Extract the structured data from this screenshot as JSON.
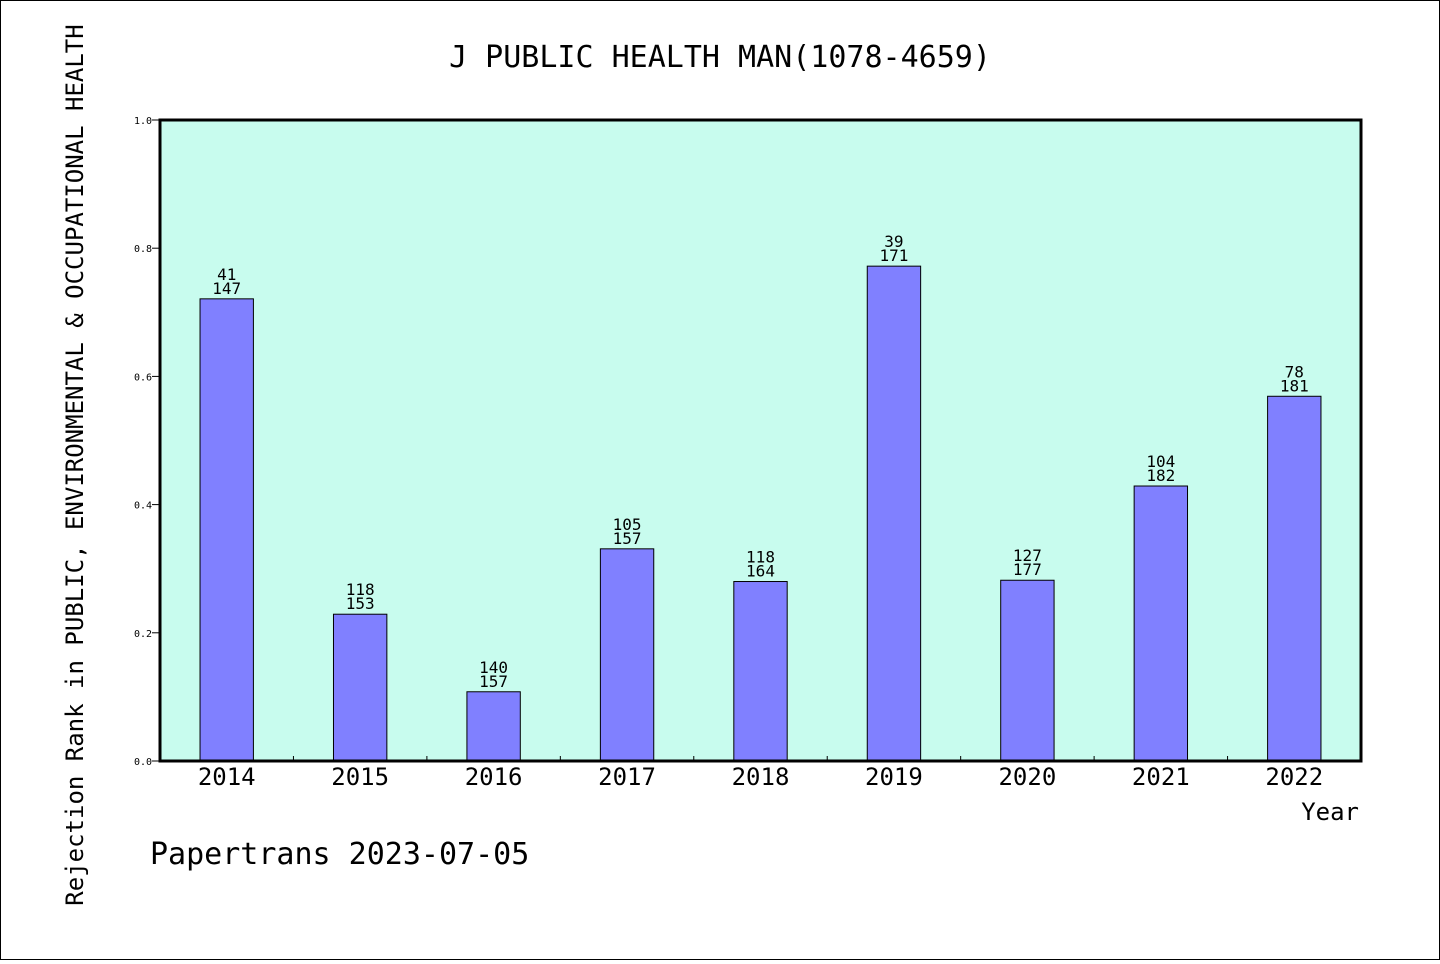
{
  "chart_data": {
    "type": "bar",
    "title": "J PUBLIC HEALTH MAN(1078-4659)",
    "xlabel": "Year",
    "ylabel": "Rejection Rank in PUBLIC, ENVIRONMENTAL & OCCUPATIONAL HEALTH",
    "categories": [
      "2014",
      "2015",
      "2016",
      "2017",
      "2018",
      "2019",
      "2020",
      "2021",
      "2022"
    ],
    "values": [
      0.721,
      0.229,
      0.108,
      0.331,
      0.28,
      0.772,
      0.282,
      0.429,
      0.569
    ],
    "rank_labels": [
      "41",
      "118",
      "140",
      "105",
      "118",
      "39",
      "127",
      "104",
      "78"
    ],
    "total_labels": [
      "147",
      "153",
      "157",
      "157",
      "164",
      "171",
      "177",
      "182",
      "181"
    ],
    "ylim": [
      0,
      1.0
    ],
    "yticks": [
      "0.0",
      "0.2",
      "0.4",
      "0.6",
      "0.8",
      "1.0"
    ],
    "ytick_values": [
      0,
      0.2,
      0.4,
      0.6,
      0.8,
      1.0
    ],
    "grid": false,
    "legend": "none",
    "colors": {
      "plot_background": "#c8fcee",
      "bar_fill": "#8080ff",
      "bar_stroke": "#000000"
    }
  },
  "footer": {
    "watermark": "Papertrans 2023-07-05"
  }
}
